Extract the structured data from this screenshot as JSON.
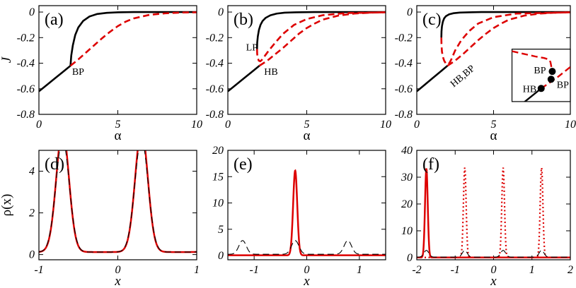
{
  "chart_data": [
    {
      "panel_label": "(a)",
      "type": "line",
      "xlabel": "α",
      "ylabel": "J",
      "xlim": [
        0,
        10
      ],
      "ylim": [
        -0.8,
        0.05
      ],
      "xticks": [
        0,
        5,
        10
      ],
      "yticks": [
        0,
        -0.2,
        -0.4,
        -0.6,
        -0.8
      ],
      "xtick_labels": [
        "0",
        "5",
        "10"
      ],
      "ytick_labels": [
        "0",
        "-0.2",
        "-0.4",
        "-0.6",
        "-0.8"
      ],
      "series": [
        {
          "style": "solid",
          "color": "#000000",
          "x": [
            0,
            0.5,
            1,
            1.5,
            2.0
          ],
          "y": [
            -0.62,
            -0.57,
            -0.52,
            -0.47,
            -0.42
          ]
        },
        {
          "style": "solid",
          "color": "#000000",
          "x": [
            2.0,
            2.05,
            2.15,
            2.3,
            2.5,
            2.8,
            3.2,
            3.7,
            4.3,
            5,
            6,
            8,
            10
          ],
          "y": [
            -0.42,
            -0.34,
            -0.26,
            -0.18,
            -0.12,
            -0.07,
            -0.035,
            -0.015,
            -0.006,
            -0.002,
            0,
            0,
            0
          ]
        },
        {
          "style": "dashed",
          "color": "#dd0000",
          "x": [
            2.0,
            2.5,
            3,
            3.5,
            4,
            4.5,
            5,
            5.5,
            6,
            7,
            8,
            9,
            10
          ],
          "y": [
            -0.42,
            -0.37,
            -0.315,
            -0.26,
            -0.205,
            -0.155,
            -0.11,
            -0.075,
            -0.05,
            -0.022,
            -0.01,
            -0.004,
            -0.002
          ]
        }
      ],
      "annotations": [
        {
          "text": "BP",
          "x": 2.1,
          "y": -0.49
        }
      ]
    },
    {
      "panel_label": "(b)",
      "type": "line",
      "xlabel": "α",
      "ylabel": "",
      "xlim": [
        0,
        10
      ],
      "ylim": [
        -0.8,
        0.05
      ],
      "xticks": [
        0,
        5,
        10
      ],
      "yticks": [
        0,
        -0.2,
        -0.4,
        -0.6,
        -0.8
      ],
      "xtick_labels": [
        "0",
        "5",
        "10"
      ],
      "ytick_labels": [
        "0",
        "-0.2",
        "-0.4",
        "-0.6",
        "-0.8"
      ],
      "series": [
        {
          "style": "solid",
          "color": "#000000",
          "x": [
            0,
            0.5,
            1,
            1.5,
            2.0
          ],
          "y": [
            -0.62,
            -0.57,
            -0.52,
            -0.47,
            -0.42
          ]
        },
        {
          "style": "solid",
          "color": "#000000",
          "x": [
            1.85,
            1.86,
            1.9,
            1.97,
            2.07,
            2.2,
            2.4,
            2.7,
            3.1,
            3.6,
            4.3,
            5.5,
            7,
            10
          ],
          "y": [
            -0.29,
            -0.24,
            -0.19,
            -0.14,
            -0.1,
            -0.07,
            -0.045,
            -0.025,
            -0.012,
            -0.005,
            -0.002,
            0,
            0,
            0
          ]
        },
        {
          "style": "dashed",
          "color": "#dd0000",
          "x": [
            1.85,
            1.86,
            1.9,
            1.96,
            2.05,
            2.15,
            2.3,
            2.6,
            3,
            3.5,
            4.2,
            5,
            6,
            7.5,
            10
          ],
          "y": [
            -0.29,
            -0.33,
            -0.36,
            -0.38,
            -0.385,
            -0.375,
            -0.35,
            -0.3,
            -0.24,
            -0.17,
            -0.1,
            -0.055,
            -0.025,
            -0.008,
            -0.002
          ]
        },
        {
          "style": "dashed",
          "color": "#dd0000",
          "x": [
            2.0,
            2.5,
            3,
            3.5,
            4,
            4.5,
            5,
            5.5,
            6,
            7,
            8,
            9,
            10
          ],
          "y": [
            -0.42,
            -0.38,
            -0.33,
            -0.28,
            -0.225,
            -0.17,
            -0.125,
            -0.09,
            -0.06,
            -0.028,
            -0.012,
            -0.005,
            -0.002
          ]
        }
      ],
      "annotations": [
        {
          "text": "LP",
          "x": 1.15,
          "y": -0.3
        },
        {
          "text": "HB",
          "x": 2.3,
          "y": -0.49
        }
      ]
    },
    {
      "panel_label": "(c)",
      "type": "line",
      "xlabel": "α",
      "ylabel": "",
      "xlim": [
        0,
        10
      ],
      "ylim": [
        -0.8,
        0.05
      ],
      "xticks": [
        0,
        5,
        10
      ],
      "yticks": [
        0,
        -0.2,
        -0.4,
        -0.6,
        -0.8
      ],
      "xtick_labels": [
        "0",
        "5",
        "10"
      ],
      "ytick_labels": [
        "0",
        "-0.2",
        "-0.4",
        "-0.6",
        "-0.8"
      ],
      "series": [
        {
          "style": "solid",
          "color": "#000000",
          "x": [
            0,
            0.5,
            1,
            1.5,
            2.0
          ],
          "y": [
            -0.62,
            -0.57,
            -0.52,
            -0.47,
            -0.42
          ]
        },
        {
          "style": "solid",
          "color": "#000000",
          "x": [
            1.6,
            1.61,
            1.64,
            1.7,
            1.78,
            1.9,
            2.1,
            2.4,
            2.8,
            3.4,
            4.2,
            5.5,
            7,
            10
          ],
          "y": [
            -0.2,
            -0.15,
            -0.11,
            -0.075,
            -0.05,
            -0.032,
            -0.018,
            -0.009,
            -0.004,
            -0.002,
            0,
            0,
            0,
            0
          ]
        },
        {
          "style": "dashed",
          "color": "#dd0000",
          "x": [
            1.6,
            1.61,
            1.64,
            1.7,
            1.78,
            1.88,
            2.0,
            2.12,
            2.25,
            2.5,
            2.9,
            3.4,
            4,
            5,
            6.5,
            10
          ],
          "y": [
            -0.2,
            -0.26,
            -0.31,
            -0.35,
            -0.38,
            -0.4,
            -0.41,
            -0.4,
            -0.37,
            -0.3,
            -0.22,
            -0.15,
            -0.09,
            -0.04,
            -0.012,
            -0.002
          ]
        },
        {
          "style": "dashed",
          "color": "#dd0000",
          "x": [
            2.0,
            2.5,
            3,
            3.5,
            4,
            4.5,
            5,
            5.5,
            6,
            7,
            8,
            9,
            10
          ],
          "y": [
            -0.42,
            -0.38,
            -0.33,
            -0.275,
            -0.22,
            -0.17,
            -0.125,
            -0.09,
            -0.06,
            -0.028,
            -0.012,
            -0.005,
            -0.002
          ]
        }
      ],
      "annotations": [
        {
          "text": "HB,BP",
          "x": 2.4,
          "y": -0.59,
          "rotate": -40
        }
      ],
      "inset": {
        "box_xlim": [
          6.2,
          10
        ],
        "box_ylim": [
          -0.7,
          -0.29
        ],
        "black_line": [
          [
            -1,
            -1.4
          ],
          [
            0,
            -0.5
          ]
        ],
        "red_upper": [
          [
            -1,
            0.92
          ],
          [
            -0.6,
            0.82
          ],
          [
            -0.2,
            0.72
          ],
          [
            0.1,
            0.66
          ],
          [
            0.28,
            0.6
          ],
          [
            0.32,
            0.5
          ],
          [
            0.38,
            0.15
          ]
        ],
        "red_lower": [
          [
            0,
            -0.5
          ],
          [
            0.55,
            -0.08
          ],
          [
            1,
            0.32
          ]
        ],
        "points": [
          {
            "x": 0,
            "y": -0.5,
            "label": "HB"
          },
          {
            "x": 0.38,
            "y": 0.15,
            "label": "BP"
          },
          {
            "x": 0.34,
            "y": -0.15,
            "label": "BP"
          }
        ]
      }
    },
    {
      "panel_label": "(d)",
      "type": "line",
      "xlabel": "x",
      "ylabel": "ρ(x)",
      "xlim": [
        -1,
        1
      ],
      "ylim": [
        -0.25,
        5.0
      ],
      "xticks": [
        -1,
        0,
        1
      ],
      "yticks": [
        0,
        2,
        4
      ],
      "xtick_labels": [
        "-1",
        "0",
        "1"
      ],
      "ytick_labels": [
        "0",
        "2",
        "4"
      ],
      "profiles": [
        {
          "style": "solid",
          "color": "#dd0000",
          "width": 2.5,
          "base": 0.12,
          "peaks": [
            {
              "c": -0.7,
              "h": 1.4,
              "w": 0.13
            },
            {
              "c": 0.3,
              "h": 4.45,
              "w": 0.11
            }
          ],
          "period": 1
        },
        {
          "style": "dashed",
          "color": "#000000",
          "width": 1.1,
          "base": 0.12,
          "peaks": [
            {
              "c": -0.7,
              "h": 2.7,
              "w": 0.12
            },
            {
              "c": 0.3,
              "h": 2.7,
              "w": 0.12
            }
          ],
          "period": 1
        }
      ]
    },
    {
      "panel_label": "(e)",
      "type": "line",
      "xlabel": "x",
      "ylabel": "",
      "xlim": [
        -1.5,
        1.5
      ],
      "ylim": [
        -0.8,
        20
      ],
      "xticks": [
        -1,
        0,
        1
      ],
      "yticks": [
        0,
        5,
        10,
        15,
        20
      ],
      "xtick_labels": [
        "-1",
        "0",
        "1"
      ],
      "ytick_labels": [
        "0",
        "5",
        "10",
        "15",
        "20"
      ],
      "profiles": [
        {
          "style": "solid",
          "color": "#dd0000",
          "width": 2.5,
          "base": 0.05,
          "peaks": [
            {
              "c": -0.22,
              "h": 16.1,
              "w": 0.055
            }
          ],
          "period": 0
        },
        {
          "style": "dashed",
          "color": "#000000",
          "width": 1.1,
          "base": 0.25,
          "peaks": [
            {
              "c": -0.22,
              "h": 2.6,
              "w": 0.1
            }
          ],
          "period": 1
        }
      ]
    },
    {
      "panel_label": "(f)",
      "type": "line",
      "xlabel": "x",
      "ylabel": "",
      "xlim": [
        -2,
        2
      ],
      "ylim": [
        -0.8,
        40
      ],
      "xticks": [
        -2,
        -1,
        0,
        1,
        2
      ],
      "yticks": [
        0,
        10,
        20,
        30,
        40
      ],
      "xtick_labels": [
        "-2",
        "-1",
        "0",
        "1",
        "2"
      ],
      "ytick_labels": [
        "0",
        "10",
        "20",
        "30",
        "40"
      ],
      "profiles": [
        {
          "style": "solid",
          "color": "#dd0000",
          "width": 2.5,
          "base": 0.05,
          "peaks": [
            {
              "c": -1.75,
              "h": 33.2,
              "w": 0.05
            }
          ],
          "period": 0
        },
        {
          "style": "dotted",
          "color": "#dd0000",
          "width": 2.2,
          "base": 0.05,
          "peaks": [
            {
              "c": -0.75,
              "h": 33.5,
              "w": 0.05
            },
            {
              "c": 0.25,
              "h": 33.5,
              "w": 0.05
            },
            {
              "c": 1.25,
              "h": 33.5,
              "w": 0.05
            }
          ],
          "period": 0
        },
        {
          "style": "dashed",
          "color": "#000000",
          "width": 1.1,
          "base": 0.2,
          "peaks": [
            {
              "c": -1.75,
              "h": 2.5,
              "w": 0.09
            }
          ],
          "period": 1
        }
      ]
    }
  ]
}
